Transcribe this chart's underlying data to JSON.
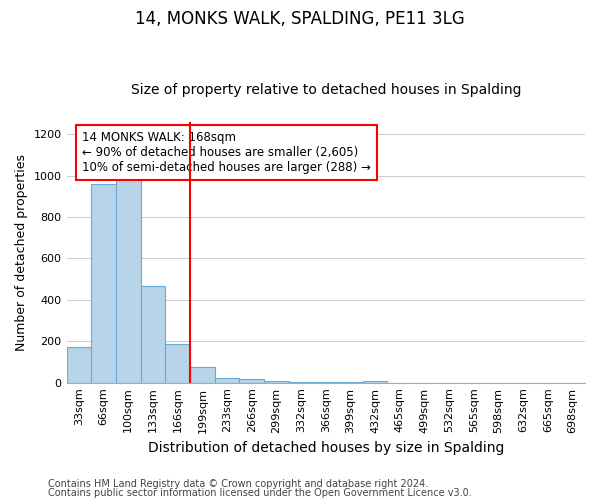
{
  "title": "14, MONKS WALK, SPALDING, PE11 3LG",
  "subtitle": "Size of property relative to detached houses in Spalding",
  "xlabel": "Distribution of detached houses by size in Spalding",
  "ylabel": "Number of detached properties",
  "footnote1": "Contains HM Land Registry data © Crown copyright and database right 2024.",
  "footnote2": "Contains public sector information licensed under the Open Government Licence v3.0.",
  "annotation_line1": "14 MONKS WALK: 168sqm",
  "annotation_line2": "← 90% of detached houses are smaller (2,605)",
  "annotation_line3": "10% of semi-detached houses are larger (288) →",
  "categories": [
    "33sqm",
    "66sqm",
    "100sqm",
    "133sqm",
    "166sqm",
    "199sqm",
    "233sqm",
    "266sqm",
    "299sqm",
    "332sqm",
    "366sqm",
    "399sqm",
    "432sqm",
    "465sqm",
    "499sqm",
    "532sqm",
    "565sqm",
    "598sqm",
    "632sqm",
    "665sqm",
    "698sqm"
  ],
  "values": [
    170,
    960,
    1000,
    465,
    185,
    75,
    25,
    20,
    10,
    5,
    5,
    5,
    10,
    0,
    0,
    0,
    0,
    0,
    0,
    0,
    0
  ],
  "bar_color": "#b8d4e8",
  "bar_edge_color": "#6aaad4",
  "red_line_x": 4.5,
  "ylim": [
    0,
    1260
  ],
  "yticks": [
    0,
    200,
    400,
    600,
    800,
    1000,
    1200
  ],
  "background_color": "#ffffff",
  "grid_color": "#cccccc",
  "title_fontsize": 12,
  "subtitle_fontsize": 10,
  "xlabel_fontsize": 10,
  "ylabel_fontsize": 9,
  "tick_fontsize": 8,
  "annotation_fontsize": 8.5,
  "footnote_fontsize": 7
}
